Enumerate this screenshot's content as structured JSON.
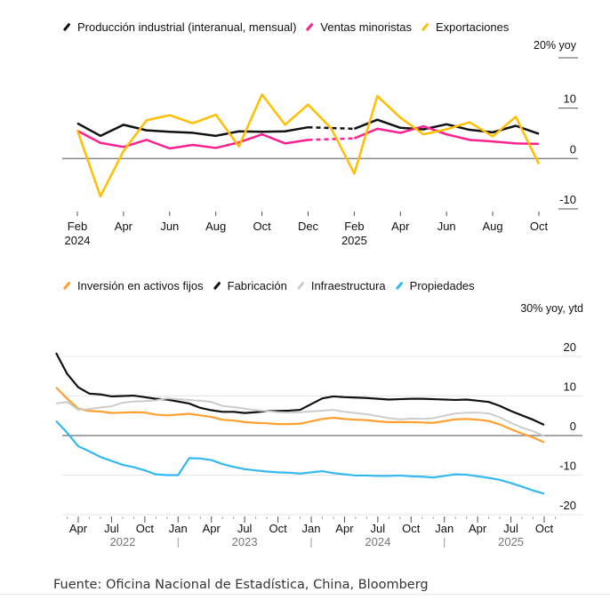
{
  "source": "Fuente: Oficina Nacional de Estadística, China, Bloomberg",
  "chart_data": [
    {
      "type": "line",
      "title": "",
      "unit_label": "20% yoy",
      "legend_position": "top-left",
      "ylim": [
        -10,
        20
      ],
      "yticks": [
        20,
        10,
        0,
        -10
      ],
      "ytick_labels": [
        "",
        "10",
        "0",
        "-10"
      ],
      "x": [
        "2024-02",
        "2024-03",
        "2024-04",
        "2024-05",
        "2024-06",
        "2024-07",
        "2024-08",
        "2024-09",
        "2024-10",
        "2024-11",
        "2024-12",
        "2025-01",
        "2025-02",
        "2025-03",
        "2025-04",
        "2025-05",
        "2025-06",
        "2025-07",
        "2025-08",
        "2025-09",
        "2025-10"
      ],
      "xtick_labels": [
        {
          "label": "Feb",
          "sub": "2024",
          "x": "2024-02"
        },
        {
          "label": "Apr",
          "sub": "",
          "x": "2024-04"
        },
        {
          "label": "Jun",
          "sub": "",
          "x": "2024-06"
        },
        {
          "label": "Aug",
          "sub": "",
          "x": "2024-08"
        },
        {
          "label": "Oct",
          "sub": "",
          "x": "2024-10"
        },
        {
          "label": "Dec",
          "sub": "",
          "x": "2024-12"
        },
        {
          "label": "Feb",
          "sub": "2025",
          "x": "2025-02"
        },
        {
          "label": "Apr",
          "sub": "",
          "x": "2025-04"
        },
        {
          "label": "Jun",
          "sub": "",
          "x": "2025-06"
        },
        {
          "label": "Aug",
          "sub": "",
          "x": "2025-08"
        },
        {
          "label": "Oct",
          "sub": "",
          "x": "2025-10"
        }
      ],
      "series": [
        {
          "name": "Producción industrial (interanual, mensual)",
          "color": "#111111",
          "dashed_gap": [
            "2024-12",
            "2025-02"
          ],
          "values": [
            7.0,
            4.5,
            6.7,
            5.6,
            5.3,
            5.1,
            4.5,
            5.4,
            5.3,
            5.4,
            6.2,
            null,
            5.9,
            7.7,
            6.1,
            5.8,
            6.8,
            5.7,
            5.2,
            6.5,
            4.9
          ]
        },
        {
          "name": "Ventas minoristas",
          "color": "#ff1f8f",
          "dashed_gap": [
            "2024-12",
            "2025-02"
          ],
          "values": [
            5.5,
            3.1,
            2.3,
            3.7,
            2.0,
            2.7,
            2.1,
            3.2,
            4.8,
            3.0,
            3.7,
            null,
            4.0,
            5.9,
            5.1,
            6.4,
            4.8,
            3.7,
            3.4,
            3.0,
            2.9
          ]
        },
        {
          "name": "Exportaciones",
          "color": "#ffbf00",
          "dashed_gap": [],
          "values": [
            5.6,
            -7.5,
            1.5,
            7.6,
            8.6,
            7.0,
            8.7,
            2.4,
            12.7,
            6.7,
            10.7,
            6.0,
            -3.0,
            12.4,
            8.1,
            4.8,
            5.8,
            7.2,
            4.4,
            8.3,
            -1.1
          ]
        }
      ]
    },
    {
      "type": "line",
      "title": "",
      "unit_label": "30% yoy, ytd",
      "legend_position": "top-left",
      "ylim": [
        -20,
        20
      ],
      "yticks": [
        20,
        10,
        0,
        -10,
        -20
      ],
      "ytick_labels": [
        "20",
        "10",
        "0",
        "-10",
        "-20"
      ],
      "x_start": "2022-02",
      "x_end": "2025-10",
      "xtick_labels": [
        {
          "label": "Apr",
          "x": "2022-04"
        },
        {
          "label": "Jul",
          "x": "2022-07"
        },
        {
          "label": "Oct",
          "x": "2022-10"
        },
        {
          "label": "Jan",
          "x": "2023-01"
        },
        {
          "label": "Apr",
          "x": "2023-04"
        },
        {
          "label": "Jul",
          "x": "2023-07"
        },
        {
          "label": "Oct",
          "x": "2023-10"
        },
        {
          "label": "Jan",
          "x": "2024-01"
        },
        {
          "label": "Apr",
          "x": "2024-04"
        },
        {
          "label": "Jul",
          "x": "2024-07"
        },
        {
          "label": "Oct",
          "x": "2024-10"
        },
        {
          "label": "Jan",
          "x": "2025-01"
        },
        {
          "label": "Apr",
          "x": "2025-04"
        },
        {
          "label": "Jul",
          "x": "2025-07"
        },
        {
          "label": "Oct",
          "x": "2025-10"
        }
      ],
      "year_labels": [
        {
          "label": "2022",
          "x": "2022-08"
        },
        {
          "label": "2023",
          "x": "2023-07"
        },
        {
          "label": "2024",
          "x": "2024-07"
        },
        {
          "label": "2025",
          "x": "2025-07"
        }
      ],
      "year_dividers": [
        "2023-01",
        "2024-01",
        "2025-01"
      ],
      "series": [
        {
          "name": "Inversión en activos fijos",
          "color": "#ff9f2f",
          "x": [
            "2022-02",
            "2022-03",
            "2022-04",
            "2022-05",
            "2022-06",
            "2022-07",
            "2022-08",
            "2022-09",
            "2022-10",
            "2022-11",
            "2022-12",
            "2023-02",
            "2023-03",
            "2023-04",
            "2023-05",
            "2023-06",
            "2023-07",
            "2023-08",
            "2023-09",
            "2023-10",
            "2023-11",
            "2023-12",
            "2024-02",
            "2024-03",
            "2024-04",
            "2024-05",
            "2024-06",
            "2024-07",
            "2024-08",
            "2024-09",
            "2024-10",
            "2024-11",
            "2024-12",
            "2025-02",
            "2025-03",
            "2025-04",
            "2025-05",
            "2025-06",
            "2025-07",
            "2025-08",
            "2025-09",
            "2025-10"
          ],
          "values": [
            12.2,
            9.3,
            6.8,
            6.2,
            6.1,
            5.7,
            5.8,
            5.9,
            5.8,
            5.3,
            5.1,
            5.5,
            5.1,
            4.7,
            4.0,
            3.8,
            3.4,
            3.2,
            3.1,
            2.9,
            2.9,
            3.0,
            4.2,
            4.5,
            4.2,
            4.0,
            3.9,
            3.6,
            3.4,
            3.4,
            3.4,
            3.3,
            3.2,
            4.1,
            4.2,
            4.0,
            3.7,
            2.8,
            1.6,
            0.5,
            -0.5,
            -1.7
          ]
        },
        {
          "name": "Fabricación",
          "color": "#111111",
          "x": [
            "2022-02",
            "2022-03",
            "2022-04",
            "2022-05",
            "2022-06",
            "2022-07",
            "2022-08",
            "2022-09",
            "2022-10",
            "2022-11",
            "2022-12",
            "2023-02",
            "2023-03",
            "2023-04",
            "2023-05",
            "2023-06",
            "2023-07",
            "2023-08",
            "2023-09",
            "2023-10",
            "2023-11",
            "2023-12",
            "2024-02",
            "2024-03",
            "2024-04",
            "2024-05",
            "2024-06",
            "2024-07",
            "2024-08",
            "2024-09",
            "2024-10",
            "2024-11",
            "2024-12",
            "2025-02",
            "2025-03",
            "2025-04",
            "2025-05",
            "2025-06",
            "2025-07",
            "2025-08",
            "2025-09",
            "2025-10"
          ],
          "values": [
            20.9,
            15.6,
            12.2,
            10.6,
            10.4,
            9.9,
            10.0,
            10.1,
            9.7,
            9.3,
            9.1,
            8.1,
            7.0,
            6.4,
            6.0,
            6.0,
            5.7,
            5.9,
            6.2,
            6.2,
            6.3,
            6.5,
            9.4,
            9.9,
            9.7,
            9.6,
            9.5,
            9.3,
            9.1,
            9.2,
            9.3,
            9.3,
            9.2,
            9.0,
            9.1,
            8.8,
            8.5,
            7.5,
            6.2,
            5.1,
            4.0,
            2.7
          ]
        },
        {
          "name": "Infraestructura",
          "color": "#cccccc",
          "x": [
            "2022-02",
            "2022-03",
            "2022-04",
            "2022-05",
            "2022-06",
            "2022-07",
            "2022-08",
            "2022-09",
            "2022-10",
            "2022-11",
            "2022-12",
            "2023-02",
            "2023-03",
            "2023-04",
            "2023-05",
            "2023-06",
            "2023-07",
            "2023-08",
            "2023-09",
            "2023-10",
            "2023-11",
            "2023-12",
            "2024-02",
            "2024-03",
            "2024-04",
            "2024-05",
            "2024-06",
            "2024-07",
            "2024-08",
            "2024-09",
            "2024-10",
            "2024-11",
            "2024-12",
            "2025-02",
            "2025-03",
            "2025-04",
            "2025-05",
            "2025-06",
            "2025-07",
            "2025-08",
            "2025-09",
            "2025-10"
          ],
          "values": [
            8.1,
            8.5,
            6.5,
            6.7,
            7.1,
            7.4,
            8.3,
            8.6,
            8.7,
            8.9,
            9.4,
            9.0,
            8.8,
            8.5,
            7.5,
            7.2,
            6.8,
            6.4,
            6.2,
            5.9,
            5.8,
            5.9,
            6.3,
            6.5,
            6.0,
            5.7,
            5.4,
            4.9,
            4.4,
            4.1,
            4.3,
            4.2,
            4.4,
            5.6,
            5.8,
            5.8,
            5.6,
            4.6,
            3.2,
            2.0,
            1.1,
            -0.1
          ]
        },
        {
          "name": "Propiedades",
          "color": "#33b8f2",
          "x": [
            "2022-02",
            "2022-03",
            "2022-04",
            "2022-05",
            "2022-06",
            "2022-07",
            "2022-08",
            "2022-09",
            "2022-10",
            "2022-11",
            "2022-12",
            "2023-01",
            "2023-02",
            "2023-03",
            "2023-04",
            "2023-05",
            "2023-06",
            "2023-07",
            "2023-08",
            "2023-09",
            "2023-10",
            "2023-11",
            "2023-12",
            "2024-02",
            "2024-03",
            "2024-04",
            "2024-05",
            "2024-06",
            "2024-07",
            "2024-08",
            "2024-09",
            "2024-10",
            "2024-11",
            "2024-12",
            "2025-02",
            "2025-03",
            "2025-04",
            "2025-05",
            "2025-06",
            "2025-07",
            "2025-08",
            "2025-09",
            "2025-10"
          ],
          "values": [
            3.7,
            0.7,
            -2.7,
            -4.0,
            -5.4,
            -6.4,
            -7.4,
            -8.0,
            -8.8,
            -9.8,
            -10.0,
            -10.0,
            -5.7,
            -5.8,
            -6.2,
            -7.2,
            -7.9,
            -8.5,
            -8.8,
            -9.1,
            -9.3,
            -9.4,
            -9.6,
            -9.0,
            -9.5,
            -9.8,
            -10.1,
            -10.1,
            -10.2,
            -10.2,
            -10.1,
            -10.3,
            -10.4,
            -10.6,
            -9.8,
            -9.9,
            -10.3,
            -10.7,
            -11.2,
            -12.0,
            -12.9,
            -13.9,
            -14.7
          ]
        }
      ]
    }
  ]
}
